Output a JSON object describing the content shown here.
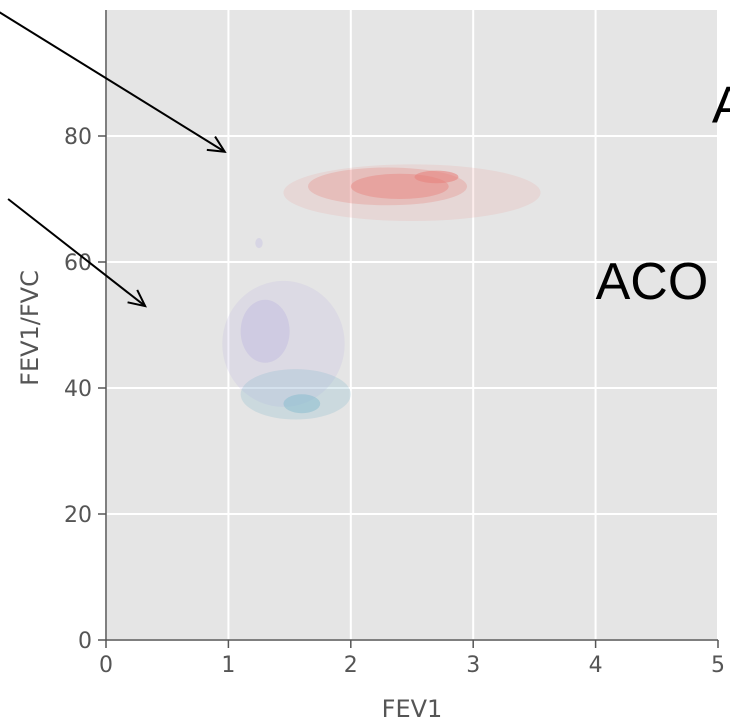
{
  "chart_data": {
    "type": "heatmap",
    "title": "",
    "xlabel": "FEV1",
    "ylabel": "FEV1/FVC",
    "xlim": [
      0,
      5
    ],
    "ylim": [
      0,
      100
    ],
    "xticks": [
      0,
      1,
      2,
      3,
      4,
      5
    ],
    "yticks": [
      0,
      20,
      40,
      60,
      80
    ],
    "grid": true,
    "legend": "none",
    "background_color": "#e5e5e5",
    "series": [
      {
        "color": "#e8837f",
        "regions": [
          {
            "cx": 2.5,
            "cy": 71,
            "rx": 1.05,
            "ry": 4.5,
            "level": 0.15
          },
          {
            "cx": 2.3,
            "cy": 72,
            "rx": 0.65,
            "ry": 3.0,
            "level": 0.3
          },
          {
            "cx": 2.4,
            "cy": 72,
            "rx": 0.4,
            "ry": 2.0,
            "level": 0.45
          },
          {
            "cx": 2.7,
            "cy": 73.5,
            "rx": 0.18,
            "ry": 1.0,
            "level": 0.6
          }
        ]
      },
      {
        "color": "#b7aee0",
        "regions": [
          {
            "cx": 1.45,
            "cy": 47,
            "rx": 0.5,
            "ry": 10.0,
            "level": 0.2
          },
          {
            "cx": 1.3,
            "cy": 49,
            "rx": 0.2,
            "ry": 5.0,
            "level": 0.35
          },
          {
            "cx": 1.25,
            "cy": 63,
            "rx": 0.03,
            "ry": 0.8,
            "level": 0.3
          }
        ]
      },
      {
        "color": "#7fb9cc",
        "regions": [
          {
            "cx": 1.55,
            "cy": 39,
            "rx": 0.45,
            "ry": 4.0,
            "level": 0.25
          },
          {
            "cx": 1.6,
            "cy": 37.5,
            "rx": 0.15,
            "ry": 1.5,
            "level": 0.45
          }
        ]
      }
    ],
    "annotations": [
      {
        "text": "ACO",
        "x": 4.0,
        "y": 57
      },
      {
        "text": "A",
        "x": 4.95,
        "y": 85
      }
    ],
    "arrows": [
      {
        "from": [
          -0.9,
          100
        ],
        "to": [
          0.97,
          77.5
        ]
      },
      {
        "from": [
          -0.8,
          70
        ],
        "to": [
          0.32,
          53
        ]
      }
    ]
  }
}
